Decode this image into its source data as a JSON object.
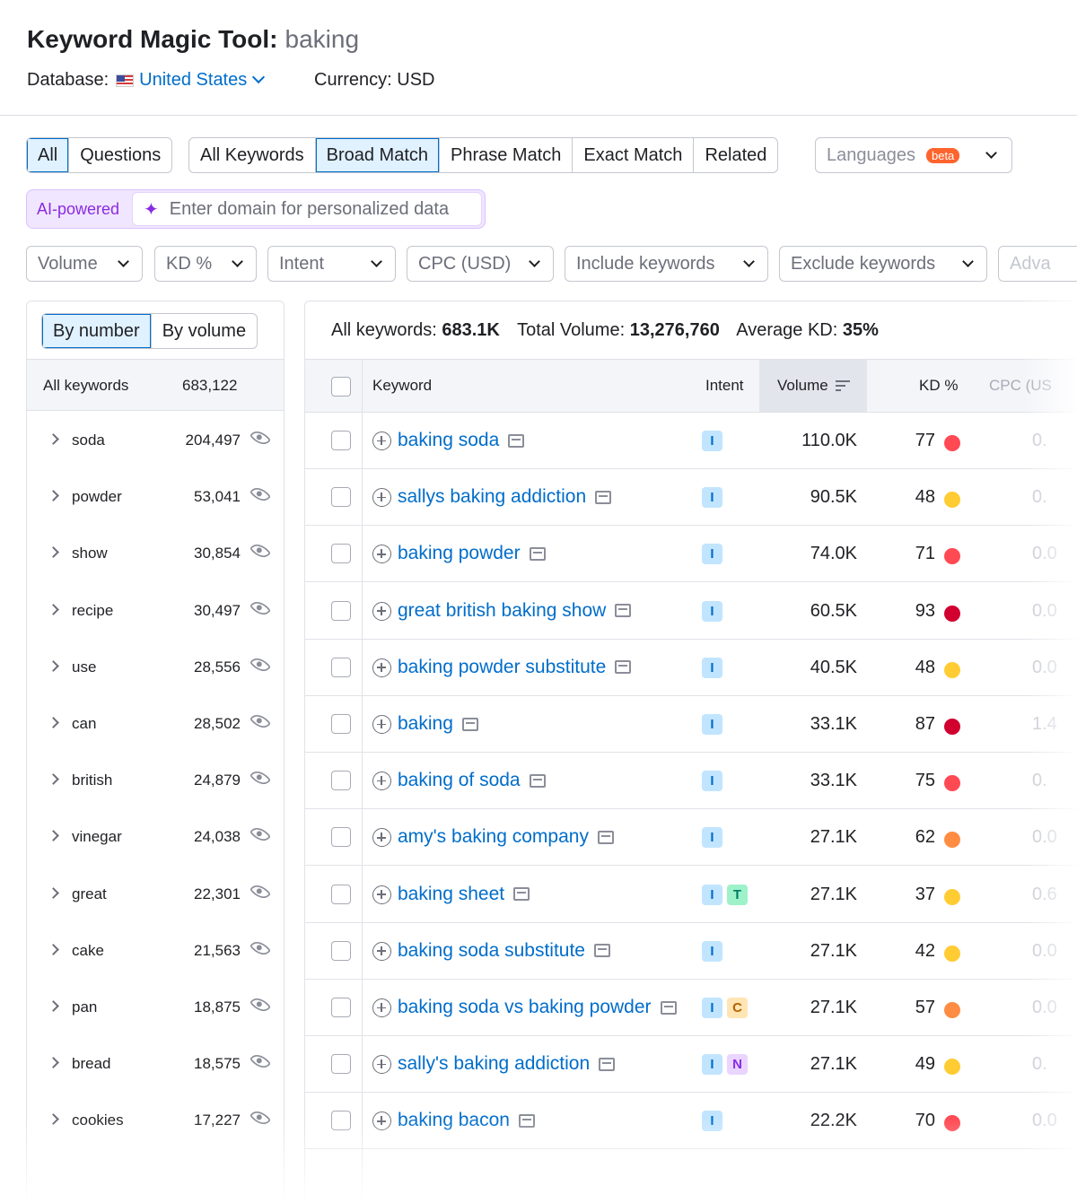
{
  "header": {
    "title": "Keyword Magic Tool:",
    "query": "baking",
    "database_label": "Database:",
    "database_value": "United States",
    "currency": "Currency: USD"
  },
  "match_tabs_1": [
    "All",
    "Questions"
  ],
  "match_tabs_2": [
    "All Keywords",
    "Broad Match",
    "Phrase Match",
    "Exact Match",
    "Related"
  ],
  "languages": {
    "label": "Languages",
    "badge": "beta"
  },
  "ai": {
    "label": "AI-powered",
    "placeholder": "Enter domain for personalized data"
  },
  "filters": [
    "Volume",
    "KD %",
    "Intent",
    "CPC (USD)",
    "Include keywords",
    "Exclude keywords",
    "Adva"
  ],
  "left_panel": {
    "toggle": [
      "By number",
      "By volume"
    ],
    "all_label": "All keywords",
    "all_count": "683,122",
    "groups": [
      {
        "word": "soda",
        "count": "204,497"
      },
      {
        "word": "powder",
        "count": "53,041"
      },
      {
        "word": "show",
        "count": "30,854"
      },
      {
        "word": "recipe",
        "count": "30,497"
      },
      {
        "word": "use",
        "count": "28,556"
      },
      {
        "word": "can",
        "count": "28,502"
      },
      {
        "word": "british",
        "count": "24,879"
      },
      {
        "word": "vinegar",
        "count": "24,038"
      },
      {
        "word": "great",
        "count": "22,301"
      },
      {
        "word": "cake",
        "count": "21,563"
      },
      {
        "word": "pan",
        "count": "18,875"
      },
      {
        "word": "bread",
        "count": "18,575"
      },
      {
        "word": "cookies",
        "count": "17,227"
      }
    ]
  },
  "summary": {
    "all_keywords_label": "All keywords:",
    "all_keywords_value": "683.1K",
    "total_volume_label": "Total Volume:",
    "total_volume_value": "13,276,760",
    "avg_kd_label": "Average KD:",
    "avg_kd_value": "35%"
  },
  "table": {
    "headers": {
      "keyword": "Keyword",
      "intent": "Intent",
      "volume": "Volume",
      "kd": "KD %",
      "cpc": "CPC (US"
    },
    "rows": [
      {
        "keyword": "baking soda",
        "intent": [
          "I"
        ],
        "volume": "110.0K",
        "kd": "77",
        "kd_color": "#ff4953",
        "cpc": "0."
      },
      {
        "keyword": "sallys baking addiction",
        "intent": [
          "I"
        ],
        "volume": "90.5K",
        "kd": "48",
        "kd_color": "#ffcc33",
        "cpc": "0."
      },
      {
        "keyword": "baking powder",
        "intent": [
          "I"
        ],
        "volume": "74.0K",
        "kd": "71",
        "kd_color": "#ff4953",
        "cpc": "0.0"
      },
      {
        "keyword": "great british baking show",
        "intent": [
          "I"
        ],
        "volume": "60.5K",
        "kd": "93",
        "kd_color": "#d1002f",
        "cpc": "0.0"
      },
      {
        "keyword": "baking powder substitute",
        "intent": [
          "I"
        ],
        "volume": "40.5K",
        "kd": "48",
        "kd_color": "#ffcc33",
        "cpc": "0.0"
      },
      {
        "keyword": "baking",
        "intent": [
          "I"
        ],
        "volume": "33.1K",
        "kd": "87",
        "kd_color": "#d1002f",
        "cpc": "1.4"
      },
      {
        "keyword": "baking of soda",
        "intent": [
          "I"
        ],
        "volume": "33.1K",
        "kd": "75",
        "kd_color": "#ff4953",
        "cpc": "0."
      },
      {
        "keyword": "amy's baking company",
        "intent": [
          "I"
        ],
        "volume": "27.1K",
        "kd": "62",
        "kd_color": "#ff8c43",
        "cpc": "0.0"
      },
      {
        "keyword": "baking sheet",
        "intent": [
          "I",
          "T"
        ],
        "volume": "27.1K",
        "kd": "37",
        "kd_color": "#ffcc33",
        "cpc": "0.6"
      },
      {
        "keyword": "baking soda substitute",
        "intent": [
          "I"
        ],
        "volume": "27.1K",
        "kd": "42",
        "kd_color": "#ffcc33",
        "cpc": "0.0"
      },
      {
        "keyword": "baking soda vs baking powder",
        "intent": [
          "I",
          "C"
        ],
        "volume": "27.1K",
        "kd": "57",
        "kd_color": "#ff8c43",
        "cpc": "0.0"
      },
      {
        "keyword": "sally's baking addiction",
        "intent": [
          "I",
          "N"
        ],
        "volume": "27.1K",
        "kd": "49",
        "kd_color": "#ffcc33",
        "cpc": "0."
      },
      {
        "keyword": "baking bacon",
        "intent": [
          "I"
        ],
        "volume": "22.2K",
        "kd": "70",
        "kd_color": "#ff4953",
        "cpc": "0.0"
      }
    ]
  }
}
